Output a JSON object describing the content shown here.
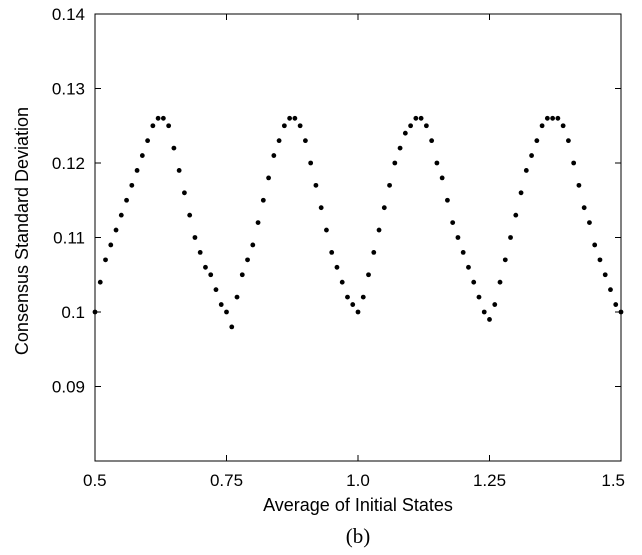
{
  "chart_data": {
    "type": "scatter",
    "caption": "(b)",
    "xlabel": "Average of Initial States",
    "ylabel": "Consensus Standard Deviation",
    "xlim": [
      0.5,
      1.5
    ],
    "ylim": [
      0.08,
      0.14
    ],
    "xticks": [
      0.5,
      0.75,
      1.0,
      1.25,
      1.5
    ],
    "xtick_labels": [
      "0.5",
      "0.75",
      "1.0",
      "1.25",
      "1.5"
    ],
    "yticks": [
      0.09,
      0.1,
      0.11,
      0.12,
      0.13,
      0.14
    ],
    "ytick_labels": [
      "0.09",
      "0.1",
      "0.11",
      "0.12",
      "0.13",
      "0.14"
    ],
    "grid": false,
    "marker_color": "#000000",
    "series": [
      {
        "x": [
          0.5,
          0.51,
          0.52,
          0.53,
          0.54,
          0.55,
          0.56,
          0.57,
          0.58,
          0.59,
          0.6,
          0.61,
          0.62,
          0.63,
          0.64,
          0.65,
          0.66,
          0.67,
          0.68,
          0.69,
          0.7,
          0.71,
          0.72,
          0.73,
          0.74,
          0.75,
          0.76,
          0.77,
          0.78,
          0.79,
          0.8,
          0.81,
          0.82,
          0.83,
          0.84,
          0.85,
          0.86,
          0.87,
          0.88,
          0.89,
          0.9,
          0.91,
          0.92,
          0.93,
          0.94,
          0.95,
          0.96,
          0.97,
          0.98,
          0.99,
          1.0,
          1.01,
          1.02,
          1.03,
          1.04,
          1.05,
          1.06,
          1.07,
          1.08,
          1.09,
          1.1,
          1.11,
          1.12,
          1.13,
          1.14,
          1.15,
          1.16,
          1.17,
          1.18,
          1.19,
          1.2,
          1.21,
          1.22,
          1.23,
          1.24,
          1.25,
          1.26,
          1.27,
          1.28,
          1.29,
          1.3,
          1.31,
          1.32,
          1.33,
          1.34,
          1.35,
          1.36,
          1.37,
          1.38,
          1.39,
          1.4,
          1.41,
          1.42,
          1.43,
          1.44,
          1.45,
          1.46,
          1.47,
          1.48,
          1.49,
          1.5
        ],
        "y": [
          0.1,
          0.104,
          0.107,
          0.109,
          0.111,
          0.113,
          0.115,
          0.117,
          0.119,
          0.121,
          0.123,
          0.125,
          0.126,
          0.126,
          0.125,
          0.122,
          0.119,
          0.116,
          0.113,
          0.11,
          0.108,
          0.106,
          0.105,
          0.103,
          0.101,
          0.1,
          0.098,
          0.102,
          0.105,
          0.107,
          0.109,
          0.112,
          0.115,
          0.118,
          0.121,
          0.123,
          0.125,
          0.126,
          0.126,
          0.125,
          0.123,
          0.12,
          0.117,
          0.114,
          0.111,
          0.108,
          0.106,
          0.104,
          0.102,
          0.101,
          0.1,
          0.102,
          0.105,
          0.108,
          0.111,
          0.114,
          0.117,
          0.12,
          0.122,
          0.124,
          0.125,
          0.126,
          0.126,
          0.125,
          0.123,
          0.12,
          0.118,
          0.115,
          0.112,
          0.11,
          0.108,
          0.106,
          0.104,
          0.102,
          0.1,
          0.099,
          0.101,
          0.104,
          0.107,
          0.11,
          0.113,
          0.116,
          0.119,
          0.121,
          0.123,
          0.125,
          0.126,
          0.126,
          0.126,
          0.125,
          0.123,
          0.12,
          0.117,
          0.114,
          0.112,
          0.109,
          0.107,
          0.105,
          0.103,
          0.101,
          0.1
        ]
      }
    ]
  }
}
